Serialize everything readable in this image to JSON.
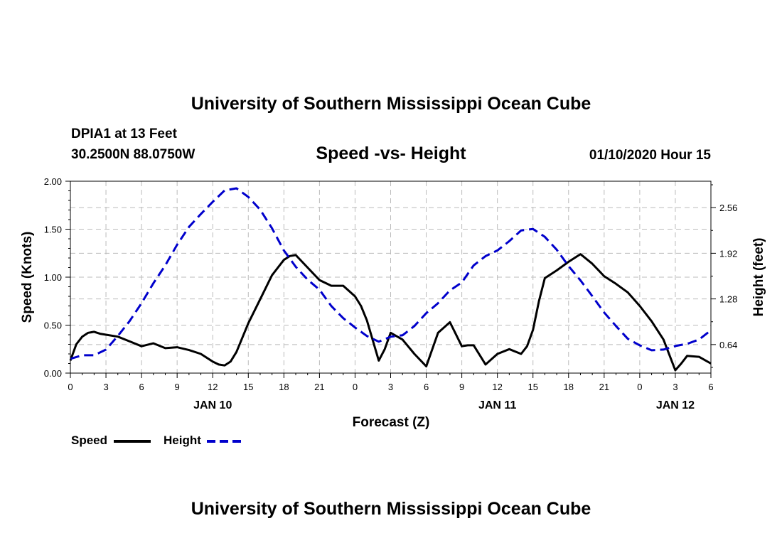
{
  "header": {
    "title_top": "University of Southern Mississippi Ocean Cube",
    "station": "DPIA1 at 13 Feet",
    "coords": "30.2500N 88.0750W",
    "datetime": "01/10/2020 Hour 15",
    "title_bottom": "University of Southern Mississippi Ocean Cube"
  },
  "chart_data": {
    "type": "line",
    "title": "Speed -vs- Height",
    "xlabel": "Forecast (Z)",
    "ylabel": "Speed (Knots)",
    "y2label": "Height (feet)",
    "grid": true,
    "xlim": [
      0,
      54
    ],
    "ylim": [
      0,
      2.0
    ],
    "y2lim": [
      0.24,
      2.93
    ],
    "x_ticks": [
      0,
      3,
      6,
      9,
      12,
      15,
      18,
      21,
      24,
      27,
      30,
      33,
      36,
      39,
      42,
      45,
      48,
      51,
      54
    ],
    "x_tick_labels": [
      "0",
      "3",
      "6",
      "9",
      "12",
      "15",
      "18",
      "21",
      "0",
      "3",
      "6",
      "9",
      "12",
      "15",
      "18",
      "21",
      "0",
      "3",
      "6"
    ],
    "y_ticks": [
      0,
      0.5,
      1.0,
      1.5,
      2.0
    ],
    "y_tick_labels": [
      "0.00",
      "0.50",
      "1.00",
      "1.50",
      "2.00"
    ],
    "y2_ticks": [
      0.64,
      1.28,
      1.92,
      2.56
    ],
    "y2_tick_labels": [
      "0.64",
      "1.28",
      "1.92",
      "2.56"
    ],
    "date_labels": [
      {
        "x": 12,
        "label": "JAN 10"
      },
      {
        "x": 36,
        "label": "JAN 11"
      },
      {
        "x": 51,
        "label": "JAN 12"
      }
    ],
    "series": [
      {
        "name": "Speed",
        "color": "#000000",
        "dash": "solid",
        "axis": "left",
        "x": [
          0,
          0.5,
          1,
          1.5,
          2,
          2.5,
          3,
          4,
          5,
          6,
          7,
          8,
          9,
          10,
          11,
          12,
          12.5,
          13,
          13.5,
          14,
          15,
          16,
          17,
          18,
          18.5,
          19,
          20,
          21,
          22,
          23,
          24,
          24.5,
          25,
          26,
          26.5,
          27,
          28,
          29,
          30,
          31,
          32,
          33,
          33.5,
          34,
          35,
          36,
          37,
          38,
          38.5,
          39,
          39.5,
          40,
          41,
          42,
          43,
          44,
          45,
          46,
          47,
          48,
          49,
          50,
          51,
          51.5,
          52,
          53,
          54
        ],
        "values": [
          0.13,
          0.3,
          0.38,
          0.42,
          0.43,
          0.41,
          0.4,
          0.38,
          0.33,
          0.28,
          0.31,
          0.26,
          0.27,
          0.24,
          0.2,
          0.12,
          0.09,
          0.08,
          0.12,
          0.22,
          0.52,
          0.77,
          1.02,
          1.18,
          1.22,
          1.23,
          1.1,
          0.97,
          0.91,
          0.91,
          0.8,
          0.7,
          0.55,
          0.13,
          0.25,
          0.42,
          0.35,
          0.2,
          0.07,
          0.42,
          0.53,
          0.28,
          0.29,
          0.29,
          0.09,
          0.2,
          0.25,
          0.2,
          0.28,
          0.45,
          0.75,
          0.99,
          1.07,
          1.16,
          1.24,
          1.14,
          1.01,
          0.93,
          0.84,
          0.7,
          0.54,
          0.35,
          0.03,
          0.1,
          0.18,
          0.17,
          0.1
        ]
      },
      {
        "name": "Height",
        "color": "#0000cc",
        "dash": "dashed",
        "axis": "right",
        "x": [
          0,
          1,
          2,
          3,
          4,
          5,
          6,
          7,
          8,
          9,
          10,
          11,
          12,
          13,
          14,
          15,
          16,
          17,
          18,
          19,
          20,
          21,
          22,
          23,
          24,
          25,
          26,
          27,
          28,
          29,
          30,
          31,
          32,
          33,
          34,
          35,
          36,
          37,
          38,
          39,
          40,
          41,
          42,
          43,
          44,
          45,
          46,
          47,
          48,
          49,
          50,
          51,
          52,
          53,
          54
        ],
        "values": [
          0.44,
          0.49,
          0.49,
          0.57,
          0.76,
          0.97,
          1.22,
          1.5,
          1.75,
          2.04,
          2.29,
          2.47,
          2.64,
          2.8,
          2.83,
          2.71,
          2.53,
          2.27,
          1.96,
          1.73,
          1.55,
          1.41,
          1.18,
          1.01,
          0.88,
          0.76,
          0.68,
          0.75,
          0.77,
          0.9,
          1.08,
          1.22,
          1.4,
          1.51,
          1.75,
          1.88,
          1.96,
          2.09,
          2.24,
          2.26,
          2.15,
          1.97,
          1.74,
          1.54,
          1.32,
          1.09,
          0.9,
          0.72,
          0.63,
          0.56,
          0.57,
          0.62,
          0.65,
          0.71,
          0.84
        ]
      }
    ],
    "legend": [
      {
        "label": "Speed",
        "color": "#000000",
        "dash": "solid"
      },
      {
        "label": "Height",
        "color": "#0000cc",
        "dash": "dashed"
      }
    ]
  }
}
